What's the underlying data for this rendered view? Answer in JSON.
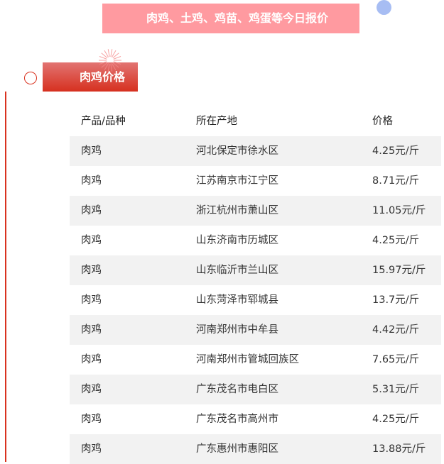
{
  "banner": {
    "title": "肉鸡、土鸡、鸡苗、鸡蛋等今日报价"
  },
  "section": {
    "title": "肉鸡价格"
  },
  "colors": {
    "banner": "#ff9aa0",
    "accent": "#d6301f",
    "dot": "#a7bdf3",
    "stripe": "#f2f2f2"
  },
  "table": {
    "headers": [
      "产品/品种",
      "所在产地",
      "价格"
    ],
    "rows": [
      [
        "肉鸡",
        "河北保定市徐水区",
        "4.25元/斤"
      ],
      [
        "肉鸡",
        "江苏南京市江宁区",
        "8.71元/斤"
      ],
      [
        "肉鸡",
        "浙江杭州市萧山区",
        "11.05元/斤"
      ],
      [
        "肉鸡",
        "山东济南市历城区",
        "4.25元/斤"
      ],
      [
        "肉鸡",
        "山东临沂市兰山区",
        "15.97元/斤"
      ],
      [
        "肉鸡",
        "山东菏泽市郓城县",
        "13.7元/斤"
      ],
      [
        "肉鸡",
        "河南郑州市中牟县",
        "4.42元/斤"
      ],
      [
        "肉鸡",
        "河南郑州市管城回族区",
        "7.65元/斤"
      ],
      [
        "肉鸡",
        "广东茂名市电白区",
        "5.31元/斤"
      ],
      [
        "肉鸡",
        "广东茂名市高州市",
        "4.25元/斤"
      ],
      [
        "肉鸡",
        "广东惠州市惠阳区",
        "13.88元/斤"
      ]
    ]
  }
}
